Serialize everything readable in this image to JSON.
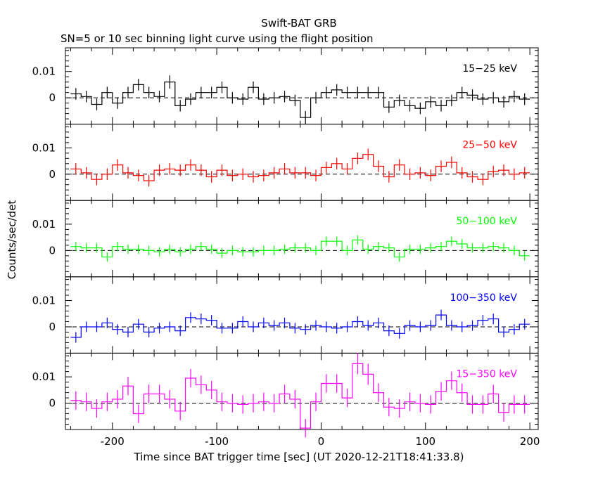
{
  "chart_data": {
    "type": "line",
    "title": "Swift-BAT GRB",
    "subtitle": "SN=5 or 10 sec binning light curve using the flight position",
    "xlabel": "Time since BAT trigger time [sec] (UT 2020-12-21T18:41:33.8)",
    "ylabel": "Counts/sec/det",
    "xlim": [
      -245,
      208
    ],
    "xticks": [
      "-200",
      "-100",
      "0",
      "100",
      "200"
    ],
    "bin_width": 10,
    "x": [
      -235,
      -225,
      -215,
      -205,
      -195,
      -185,
      -175,
      -165,
      -155,
      -145,
      -135,
      -125,
      -115,
      -105,
      -95,
      -85,
      -75,
      -65,
      -55,
      -45,
      -35,
      -25,
      -15,
      -5,
      5,
      15,
      25,
      35,
      45,
      55,
      65,
      75,
      85,
      95,
      105,
      115,
      125,
      135,
      145,
      155,
      165,
      175,
      185,
      195
    ],
    "panels": [
      {
        "label": "15−25 keV",
        "color": "#000000",
        "ylim": [
          -0.01,
          0.019
        ],
        "yticks": [
          "0.01",
          "0"
        ],
        "values": [
          0.0015,
          0.0005,
          -0.0025,
          0.002,
          -0.002,
          0.002,
          0.005,
          0.002,
          0.0005,
          0.006,
          -0.003,
          -0.0005,
          0.002,
          0.002,
          0.004,
          0.0,
          -0.0005,
          0.004,
          -0.0005,
          0.0,
          0.0005,
          -0.001,
          -0.0075,
          0.0,
          0.002,
          0.003,
          0.002,
          0.002,
          0.002,
          0.002,
          -0.0035,
          -0.001,
          -0.003,
          -0.004,
          -0.0015,
          -0.003,
          -0.001,
          0.002,
          0.001,
          -0.0005,
          0.0,
          -0.0015,
          0.0005,
          -0.0005
        ],
        "errors": [
          0.0022,
          0.0022,
          0.0022,
          0.0022,
          0.0022,
          0.0022,
          0.0022,
          0.0022,
          0.0022,
          0.0025,
          0.0022,
          0.0022,
          0.0022,
          0.0022,
          0.0022,
          0.0022,
          0.0022,
          0.0022,
          0.0022,
          0.0022,
          0.0022,
          0.0022,
          0.0025,
          0.0022,
          0.0022,
          0.0022,
          0.0022,
          0.0022,
          0.0022,
          0.0022,
          0.0022,
          0.0022,
          0.0022,
          0.0022,
          0.0022,
          0.0022,
          0.0022,
          0.0022,
          0.0022,
          0.0022,
          0.0022,
          0.0022,
          0.0022,
          0.0022
        ]
      },
      {
        "label": "25−50 keV",
        "color": "#ff0000",
        "ylim": [
          -0.01,
          0.019
        ],
        "yticks": [
          "0.01",
          "0"
        ],
        "values": [
          0.002,
          0.0005,
          -0.002,
          0.0,
          0.0035,
          0.0005,
          -0.0005,
          -0.0025,
          0.0015,
          0.002,
          0.0015,
          0.0035,
          0.0015,
          -0.001,
          0.0015,
          -0.0005,
          0.0,
          -0.001,
          -0.0005,
          0.0005,
          0.002,
          0.0005,
          0.0005,
          -0.0005,
          0.0025,
          0.004,
          0.002,
          0.006,
          0.0075,
          0.003,
          -0.001,
          0.0035,
          0.0,
          0.0005,
          -0.0005,
          0.003,
          0.0045,
          0.0005,
          -0.001,
          -0.002,
          0.001,
          0.0015,
          0.0,
          0.0005
        ],
        "errors": [
          0.0022,
          0.0022,
          0.0022,
          0.0022,
          0.0022,
          0.0022,
          0.0022,
          0.0022,
          0.0022,
          0.0022,
          0.0022,
          0.0022,
          0.0022,
          0.0022,
          0.0022,
          0.0022,
          0.0022,
          0.0022,
          0.0022,
          0.0022,
          0.0022,
          0.0022,
          0.0022,
          0.0022,
          0.0022,
          0.0022,
          0.0022,
          0.0022,
          0.0022,
          0.0022,
          0.0022,
          0.0022,
          0.0022,
          0.0022,
          0.0022,
          0.0022,
          0.0022,
          0.0022,
          0.0022,
          0.0022,
          0.0022,
          0.0022,
          0.0022,
          0.0022
        ]
      },
      {
        "label": "50−100 keV",
        "color": "#00ff00",
        "ylim": [
          -0.01,
          0.019
        ],
        "yticks": [
          "0.01",
          "0"
        ],
        "values": [
          0.0015,
          0.001,
          0.001,
          -0.0025,
          0.0015,
          0.0005,
          0.0005,
          0.0,
          -0.0005,
          0.0005,
          -0.0005,
          0.0005,
          0.0015,
          0.0005,
          -0.001,
          0.0,
          -0.0005,
          -0.0005,
          0.0,
          0.0,
          0.0005,
          0.001,
          0.001,
          0.0,
          0.0035,
          0.0035,
          0.0,
          0.004,
          0.0005,
          0.0015,
          0.001,
          -0.0025,
          0.0005,
          0.0005,
          0.001,
          0.0015,
          0.0035,
          0.0025,
          0.001,
          0.001,
          0.0015,
          0.001,
          0.0,
          -0.002
        ],
        "errors": [
          0.0018,
          0.0018,
          0.0018,
          0.0018,
          0.0018,
          0.0018,
          0.0018,
          0.0018,
          0.0018,
          0.0018,
          0.0018,
          0.0018,
          0.0018,
          0.0018,
          0.0018,
          0.0018,
          0.0018,
          0.0018,
          0.0018,
          0.0018,
          0.0018,
          0.0018,
          0.0018,
          0.0018,
          0.0018,
          0.0018,
          0.0018,
          0.0018,
          0.0018,
          0.0018,
          0.0018,
          0.0018,
          0.0018,
          0.0018,
          0.0018,
          0.0018,
          0.0018,
          0.0018,
          0.0018,
          0.0018,
          0.0018,
          0.0018,
          0.0018,
          0.0018
        ]
      },
      {
        "label": "100−350 keV",
        "color": "#0000ff",
        "ylim": [
          -0.01,
          0.019
        ],
        "yticks": [
          "0.01",
          "0"
        ],
        "values": [
          -0.004,
          0.0,
          0.0,
          0.0015,
          -0.001,
          -0.002,
          0.001,
          -0.002,
          -0.0005,
          0.0,
          -0.0015,
          0.0035,
          0.003,
          0.0025,
          -0.0005,
          -0.0005,
          0.002,
          0.0,
          0.0015,
          0.0005,
          0.0015,
          -0.0005,
          -0.001,
          0.0005,
          0.0,
          -0.0005,
          0.0,
          0.002,
          0.0005,
          0.0015,
          -0.0015,
          -0.0025,
          0.0005,
          0.0,
          0.0005,
          0.0045,
          0.0005,
          0.0,
          0.0005,
          0.0025,
          0.003,
          -0.002,
          -0.001,
          0.001
        ],
        "errors": [
          0.002,
          0.002,
          0.002,
          0.002,
          0.002,
          0.002,
          0.002,
          0.002,
          0.002,
          0.002,
          0.002,
          0.002,
          0.002,
          0.002,
          0.002,
          0.002,
          0.002,
          0.002,
          0.002,
          0.002,
          0.002,
          0.002,
          0.002,
          0.002,
          0.002,
          0.002,
          0.002,
          0.002,
          0.002,
          0.002,
          0.002,
          0.002,
          0.002,
          0.002,
          0.002,
          0.002,
          0.002,
          0.002,
          0.002,
          0.002,
          0.002,
          0.002,
          0.002,
          0.002
        ]
      },
      {
        "label": "15−350 keV",
        "color": "#ff00ff",
        "ylim": [
          -0.01,
          0.019
        ],
        "yticks": [
          "0.01",
          "0"
        ],
        "values": [
          0.001,
          0.0005,
          -0.002,
          0.0005,
          0.0015,
          0.0065,
          -0.004,
          0.0035,
          0.0035,
          0.0015,
          -0.003,
          0.0095,
          0.007,
          0.005,
          0.0005,
          0.0,
          -0.0005,
          0.0,
          0.0005,
          0.0,
          0.0035,
          0.0015,
          -0.0095,
          0.0005,
          0.0075,
          0.0075,
          0.002,
          0.015,
          0.011,
          0.004,
          -0.0015,
          -0.002,
          0.0005,
          0.0,
          -0.0005,
          0.0045,
          0.0085,
          0.004,
          -0.0005,
          -0.0005,
          0.0035,
          -0.0035,
          -0.0005,
          -0.0005
        ],
        "errors": [
          0.0035,
          0.0035,
          0.0035,
          0.0035,
          0.0035,
          0.0035,
          0.0035,
          0.0035,
          0.0035,
          0.0035,
          0.0035,
          0.0035,
          0.0035,
          0.0035,
          0.0035,
          0.0035,
          0.0035,
          0.0035,
          0.0035,
          0.0035,
          0.0035,
          0.0035,
          0.0035,
          0.0035,
          0.0035,
          0.0035,
          0.0035,
          0.004,
          0.004,
          0.0035,
          0.0035,
          0.0035,
          0.0035,
          0.0035,
          0.0035,
          0.0035,
          0.0035,
          0.0035,
          0.0035,
          0.0035,
          0.0035,
          0.0035,
          0.0035,
          0.0035
        ]
      }
    ]
  }
}
